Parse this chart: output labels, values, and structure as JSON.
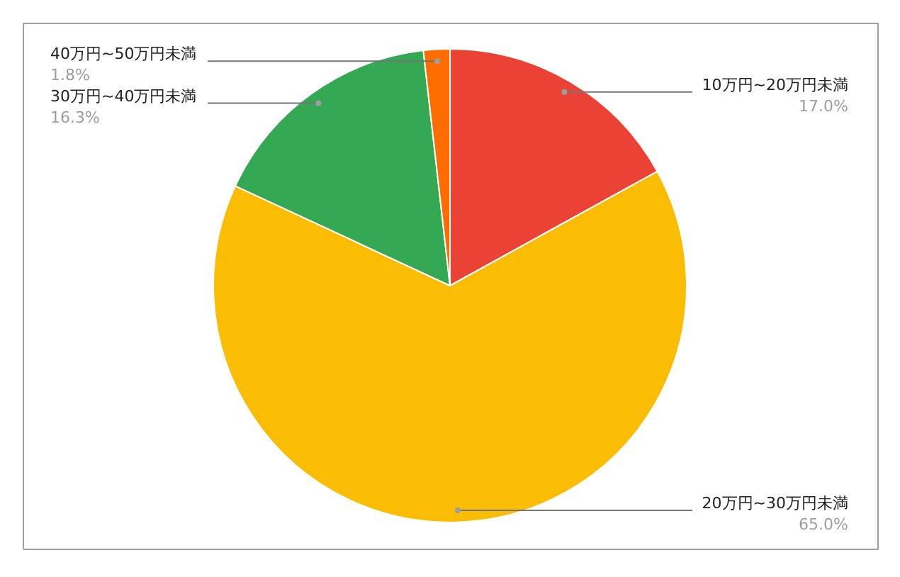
{
  "chart_data": {
    "type": "pie",
    "categories": [
      "10万円~20万円未満",
      "20万円~30万円未満",
      "30万円~40万円未満",
      "40万円~50万円未満"
    ],
    "values": [
      17.0,
      65.0,
      16.3,
      1.8
    ],
    "value_labels": [
      "17.0%",
      "65.0%",
      "16.3%",
      "1.8%"
    ],
    "colors": [
      "#ea4335",
      "#fbbc04",
      "#34a853",
      "#ff6d01"
    ]
  }
}
